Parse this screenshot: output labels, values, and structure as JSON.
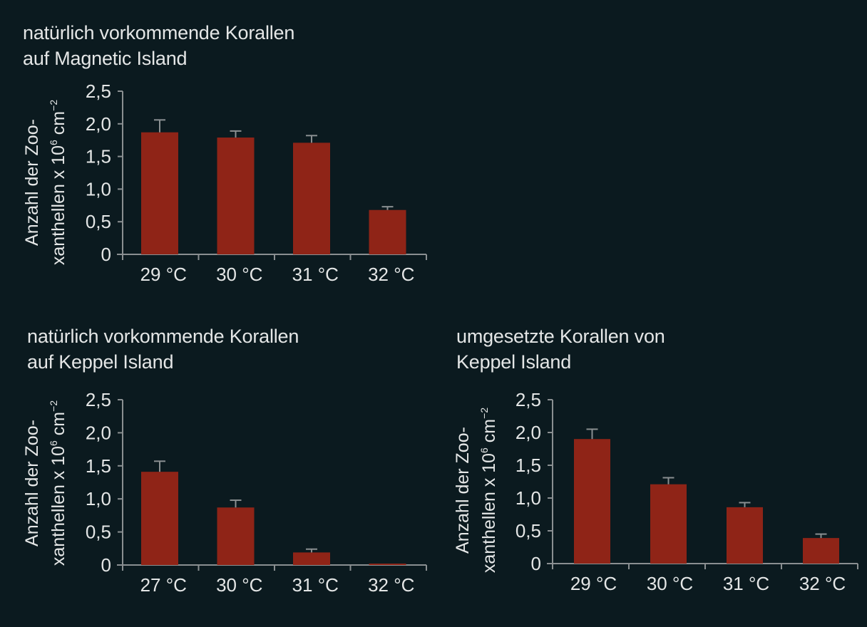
{
  "colors": {
    "background": "#0b1a1f",
    "bar": "#8f2417",
    "axis": "#8a8f91",
    "text": "#e4e6e6"
  },
  "charts": [
    {
      "title_line1": "natürlich vorkommende Korallen",
      "title_line2": "auf Magnetic Island",
      "ylabel_line1": "Anzahl der Zoo-",
      "ylabel_line2_pre": "xanthellen x 10",
      "ylabel_sup1": "6",
      "ylabel_mid": " cm",
      "ylabel_sup2": "−2"
    },
    {
      "title_line1": "natürlich vorkommende Korallen",
      "title_line2": "auf Keppel Island",
      "ylabel_line1": "Anzahl der Zoo-",
      "ylabel_line2_pre": "xanthellen x 10",
      "ylabel_sup1": "6",
      "ylabel_mid": " cm",
      "ylabel_sup2": "−2"
    },
    {
      "title_line1": "umgesetzte Korallen von",
      "title_line2": "Keppel Island",
      "ylabel_line1": "Anzahl der Zoo-",
      "ylabel_line2_pre": "xanthellen x 10",
      "ylabel_sup1": "6",
      "ylabel_mid": " cm",
      "ylabel_sup2": "−2"
    }
  ],
  "chart_data": [
    {
      "type": "bar",
      "title": "natürlich vorkommende Korallen auf Magnetic Island",
      "xlabel": "",
      "ylabel": "Anzahl der Zooxanthellen x 10^6 cm^-2",
      "categories": [
        "29 °C",
        "30 °C",
        "31 °C",
        "32 °C"
      ],
      "values": [
        1.87,
        1.79,
        1.71,
        0.68
      ],
      "error_upper": [
        2.06,
        1.89,
        1.82,
        0.73
      ],
      "yticks": [
        "0",
        "0,5",
        "1,0",
        "1,5",
        "2,0",
        "2,5"
      ],
      "ylim": [
        0,
        2.5
      ],
      "grid": false,
      "legend": null
    },
    {
      "type": "bar",
      "title": "natürlich vorkommende Korallen auf Keppel Island",
      "xlabel": "",
      "ylabel": "Anzahl der Zooxanthellen x 10^6 cm^-2",
      "categories": [
        "27 °C",
        "30 °C",
        "31 °C",
        "32 °C"
      ],
      "values": [
        1.41,
        0.87,
        0.19,
        0.02
      ],
      "error_upper": [
        1.57,
        0.98,
        0.24,
        0.02
      ],
      "yticks": [
        "0",
        "0,5",
        "1,0",
        "1,5",
        "2,0",
        "2,5"
      ],
      "ylim": [
        0,
        2.5
      ],
      "grid": false,
      "legend": null
    },
    {
      "type": "bar",
      "title": "umgesetzte Korallen von Keppel Island",
      "xlabel": "",
      "ylabel": "Anzahl der Zooxanthellen x 10^6 cm^-2",
      "categories": [
        "29 °C",
        "30 °C",
        "31 °C",
        "32 °C"
      ],
      "values": [
        1.9,
        1.21,
        0.86,
        0.39
      ],
      "error_upper": [
        2.05,
        1.31,
        0.93,
        0.45
      ],
      "yticks": [
        "0",
        "0,5",
        "1,0",
        "1,5",
        "2,0",
        "2,5"
      ],
      "ylim": [
        0,
        2.5
      ],
      "grid": false,
      "legend": null
    }
  ]
}
